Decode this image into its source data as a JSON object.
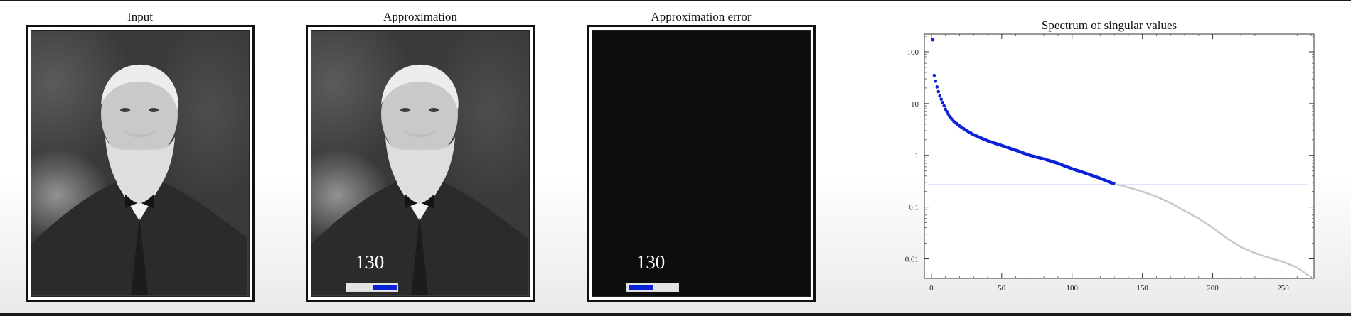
{
  "panels": {
    "input": {
      "title": "Input"
    },
    "approximation": {
      "title": "Approximation",
      "rank": "130",
      "slider_position": 0.5
    },
    "error": {
      "title": "Approximation error",
      "rank": "130",
      "slider_position": 0.5
    }
  },
  "colors": {
    "accent": "#0b22d6",
    "threshold_line": "#b9c4f2",
    "discarded_points": "#c8c8c8",
    "error_background": "#0d0d0d"
  },
  "chart_data": {
    "type": "scatter",
    "title": "Spectrum of singular values",
    "xlabel": "",
    "ylabel": "",
    "y_scale": "log",
    "xlim": [
      -5,
      272
    ],
    "ylim": [
      0.0042,
      220
    ],
    "x_ticks": [
      0,
      50,
      100,
      150,
      200,
      250
    ],
    "y_ticks": [
      0.01,
      0.1,
      1,
      10,
      100
    ],
    "y_tick_labels": [
      "0.01",
      "0.1",
      "1",
      "10",
      "100"
    ],
    "rank_cutoff": 130,
    "threshold_value": 0.27,
    "curve_anchors": [
      [
        1,
        170
      ],
      [
        2,
        35
      ],
      [
        3,
        27
      ],
      [
        4,
        21
      ],
      [
        5,
        17
      ],
      [
        6,
        14
      ],
      [
        8,
        10.5
      ],
      [
        10,
        7.8
      ],
      [
        13,
        5.6
      ],
      [
        16,
        4.5
      ],
      [
        20,
        3.7
      ],
      [
        25,
        3.0
      ],
      [
        30,
        2.5
      ],
      [
        40,
        1.9
      ],
      [
        50,
        1.55
      ],
      [
        60,
        1.25
      ],
      [
        70,
        1.0
      ],
      [
        80,
        0.85
      ],
      [
        90,
        0.7
      ],
      [
        100,
        0.55
      ],
      [
        110,
        0.45
      ],
      [
        120,
        0.36
      ],
      [
        130,
        0.28
      ],
      [
        140,
        0.24
      ],
      [
        150,
        0.2
      ],
      [
        160,
        0.16
      ],
      [
        170,
        0.12
      ],
      [
        180,
        0.085
      ],
      [
        190,
        0.06
      ],
      [
        200,
        0.04
      ],
      [
        210,
        0.025
      ],
      [
        220,
        0.017
      ],
      [
        230,
        0.013
      ],
      [
        240,
        0.0105
      ],
      [
        250,
        0.0088
      ],
      [
        260,
        0.0068
      ],
      [
        268,
        0.0048
      ]
    ]
  }
}
